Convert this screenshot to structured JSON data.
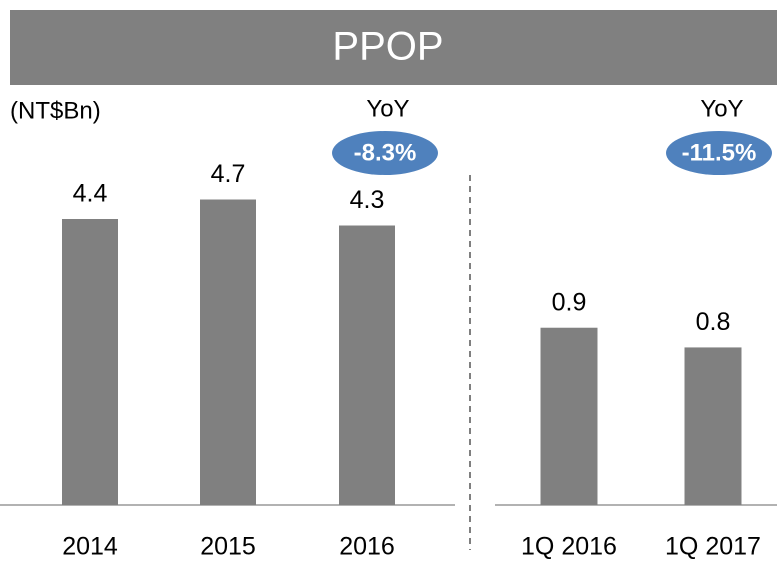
{
  "title": "PPOP",
  "chart_data": [
    {
      "type": "bar",
      "y_label": "(NT$Bn)",
      "categories": [
        "2014",
        "2015",
        "2016"
      ],
      "values": [
        4.4,
        4.7,
        4.3
      ],
      "color": "#808080",
      "ylim": [
        0,
        5
      ],
      "annotation_label": "YoY",
      "annotation": "-8.3%"
    },
    {
      "type": "bar",
      "categories": [
        "1Q 2016",
        "1Q 2017"
      ],
      "values": [
        0.9,
        0.8
      ],
      "color": "#808080",
      "ylim": [
        0,
        1.65
      ],
      "annotation_label": "YoY",
      "annotation": "-11.5%"
    }
  ]
}
